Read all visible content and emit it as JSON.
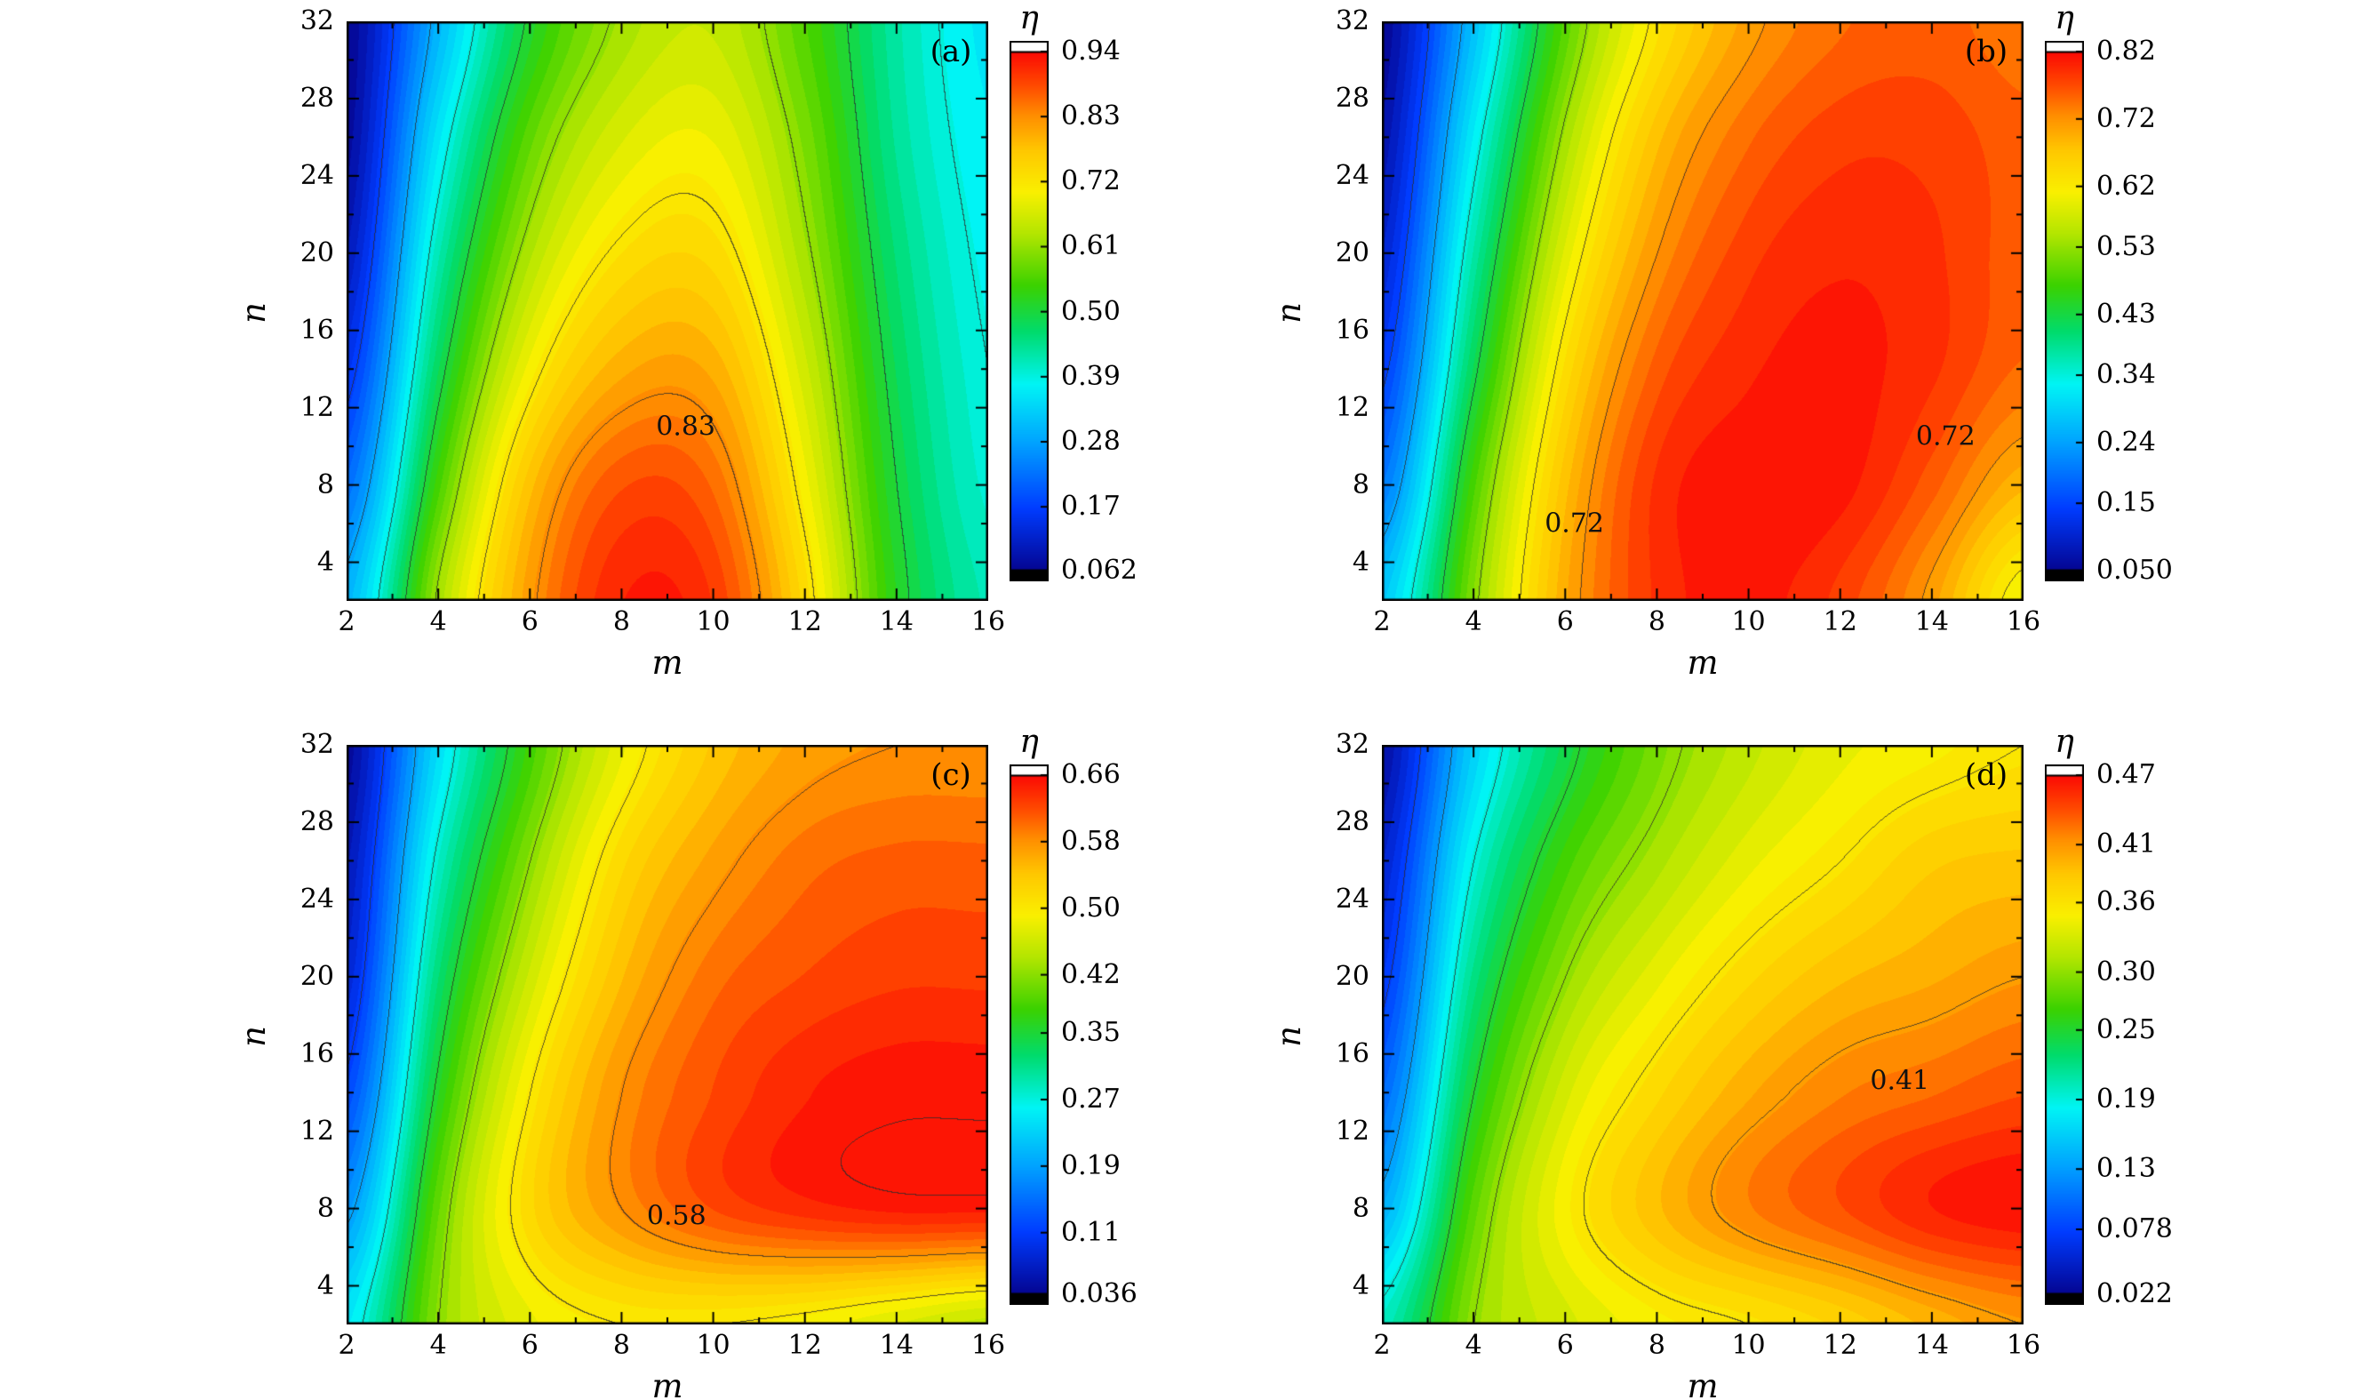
{
  "figure": {
    "background": "#ffffff"
  },
  "chart_data": [
    {
      "type": "heatmap",
      "tag": "(a)",
      "xlabel": "m",
      "ylabel": "n",
      "colorbar_label": "η",
      "x_range": [
        2,
        16
      ],
      "y_range": [
        2,
        32
      ],
      "x_ticks": [
        2,
        4,
        6,
        8,
        10,
        12,
        14,
        16
      ],
      "y_ticks": [
        4,
        8,
        12,
        16,
        20,
        24,
        28,
        32
      ],
      "z_min": 0.062,
      "z_max": 0.94,
      "colorbar_ticks": [
        "0.94",
        "0.83",
        "0.72",
        "0.61",
        "0.50",
        "0.39",
        "0.28",
        "0.17",
        "0.062"
      ],
      "grid_m": [
        2,
        4,
        6,
        8,
        10,
        12,
        14,
        16
      ],
      "grid_n": [
        2,
        8,
        14,
        20,
        26,
        32
      ],
      "values": [
        [
          0.3,
          0.62,
          0.82,
          0.92,
          0.9,
          0.74,
          0.52,
          0.42
        ],
        [
          0.22,
          0.55,
          0.78,
          0.88,
          0.86,
          0.7,
          0.5,
          0.4
        ],
        [
          0.15,
          0.48,
          0.7,
          0.8,
          0.8,
          0.66,
          0.48,
          0.39
        ],
        [
          0.1,
          0.42,
          0.63,
          0.73,
          0.74,
          0.62,
          0.46,
          0.38
        ],
        [
          0.07,
          0.36,
          0.57,
          0.67,
          0.69,
          0.59,
          0.44,
          0.37
        ],
        [
          0.06,
          0.3,
          0.51,
          0.62,
          0.65,
          0.56,
          0.43,
          0.36
        ]
      ],
      "contour_labels": [
        {
          "text": "0.83",
          "m": 9.4,
          "n": 11.0
        }
      ]
    },
    {
      "type": "heatmap",
      "tag": "(b)",
      "xlabel": "m",
      "ylabel": "n",
      "colorbar_label": "η",
      "x_range": [
        2,
        16
      ],
      "y_range": [
        2,
        32
      ],
      "x_ticks": [
        2,
        4,
        6,
        8,
        10,
        12,
        14,
        16
      ],
      "y_ticks": [
        4,
        8,
        12,
        16,
        20,
        24,
        28,
        32
      ],
      "z_min": 0.05,
      "z_max": 0.82,
      "colorbar_ticks": [
        "0.82",
        "0.72",
        "0.62",
        "0.53",
        "0.43",
        "0.34",
        "0.24",
        "0.15",
        "0.050"
      ],
      "grid_m": [
        2,
        4,
        6,
        8,
        10,
        12,
        14,
        16
      ],
      "grid_n": [
        2,
        8,
        14,
        20,
        26,
        32
      ],
      "values": [
        [
          0.28,
          0.52,
          0.7,
          0.79,
          0.81,
          0.78,
          0.71,
          0.6
        ],
        [
          0.2,
          0.48,
          0.68,
          0.79,
          0.815,
          0.81,
          0.76,
          0.69
        ],
        [
          0.14,
          0.42,
          0.64,
          0.76,
          0.8,
          0.81,
          0.79,
          0.75
        ],
        [
          0.1,
          0.37,
          0.59,
          0.72,
          0.78,
          0.8,
          0.79,
          0.76
        ],
        [
          0.07,
          0.32,
          0.54,
          0.68,
          0.75,
          0.78,
          0.78,
          0.76
        ],
        [
          0.05,
          0.27,
          0.49,
          0.63,
          0.71,
          0.75,
          0.76,
          0.74
        ]
      ],
      "contour_labels": [
        {
          "text": "0.72",
          "m": 6.2,
          "n": 6.0
        },
        {
          "text": "0.72",
          "m": 14.3,
          "n": 10.5
        }
      ]
    },
    {
      "type": "heatmap",
      "tag": "(c)",
      "xlabel": "m",
      "ylabel": "n",
      "colorbar_label": "η",
      "x_range": [
        2,
        16
      ],
      "y_range": [
        2,
        32
      ],
      "x_ticks": [
        2,
        4,
        6,
        8,
        10,
        12,
        14,
        16
      ],
      "y_ticks": [
        4,
        8,
        12,
        16,
        20,
        24,
        28,
        32
      ],
      "z_min": 0.036,
      "z_max": 0.66,
      "colorbar_ticks": [
        "0.66",
        "0.58",
        "0.50",
        "0.42",
        "0.35",
        "0.27",
        "0.19",
        "0.11",
        "0.036"
      ],
      "grid_m": [
        2,
        4,
        6,
        8,
        10,
        12,
        14,
        16
      ],
      "grid_n": [
        2,
        8,
        14,
        20,
        26,
        32
      ],
      "values": [
        [
          0.25,
          0.42,
          0.48,
          0.5,
          0.5,
          0.49,
          0.47,
          0.45
        ],
        [
          0.18,
          0.4,
          0.52,
          0.58,
          0.62,
          0.64,
          0.65,
          0.65
        ],
        [
          0.12,
          0.36,
          0.5,
          0.58,
          0.62,
          0.645,
          0.655,
          0.655
        ],
        [
          0.08,
          0.32,
          0.46,
          0.55,
          0.6,
          0.62,
          0.63,
          0.63
        ],
        [
          0.06,
          0.28,
          0.42,
          0.52,
          0.57,
          0.6,
          0.61,
          0.61
        ],
        [
          0.04,
          0.24,
          0.38,
          0.48,
          0.54,
          0.57,
          0.58,
          0.58
        ]
      ],
      "contour_labels": [
        {
          "text": "0.58",
          "m": 9.2,
          "n": 7.6
        }
      ]
    },
    {
      "type": "heatmap",
      "tag": "(d)",
      "xlabel": "m",
      "ylabel": "n",
      "colorbar_label": "η",
      "x_range": [
        2,
        16
      ],
      "y_range": [
        2,
        32
      ],
      "x_ticks": [
        2,
        4,
        6,
        8,
        10,
        12,
        14,
        16
      ],
      "y_ticks": [
        4,
        8,
        12,
        16,
        20,
        24,
        28,
        32
      ],
      "z_min": 0.022,
      "z_max": 0.47,
      "colorbar_ticks": [
        "0.47",
        "0.41",
        "0.36",
        "0.30",
        "0.25",
        "0.19",
        "0.13",
        "0.078",
        "0.022"
      ],
      "grid_m": [
        2,
        4,
        6,
        8,
        10,
        12,
        14,
        16
      ],
      "grid_n": [
        2,
        8,
        14,
        20,
        26,
        32
      ],
      "values": [
        [
          0.2,
          0.3,
          0.33,
          0.35,
          0.36,
          0.375,
          0.395,
          0.41
        ],
        [
          0.14,
          0.28,
          0.35,
          0.39,
          0.42,
          0.44,
          0.46,
          0.468
        ],
        [
          0.1,
          0.25,
          0.33,
          0.37,
          0.4,
          0.42,
          0.43,
          0.44
        ],
        [
          0.07,
          0.22,
          0.3,
          0.34,
          0.37,
          0.39,
          0.4,
          0.41
        ],
        [
          0.05,
          0.19,
          0.27,
          0.31,
          0.34,
          0.36,
          0.38,
          0.385
        ],
        [
          0.03,
          0.16,
          0.24,
          0.29,
          0.32,
          0.34,
          0.35,
          0.36
        ]
      ],
      "contour_labels": [
        {
          "text": "0.41",
          "m": 13.3,
          "n": 14.6
        }
      ]
    }
  ]
}
